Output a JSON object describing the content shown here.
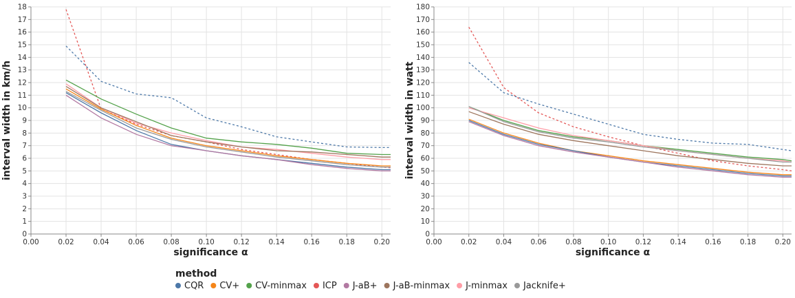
{
  "legend": {
    "title": "method",
    "entries": [
      {
        "name": "CQR",
        "color": "#4c78a8"
      },
      {
        "name": "CV+",
        "color": "#f58518"
      },
      {
        "name": "CV-minmax",
        "color": "#54a24b"
      },
      {
        "name": "ICP",
        "color": "#e45756"
      },
      {
        "name": "J-aB+",
        "color": "#b279a2"
      },
      {
        "name": "J-aB-minmax",
        "color": "#9d755d"
      },
      {
        "name": "J-minmax",
        "color": "#ff9da6"
      },
      {
        "name": "Jacknife+",
        "color": "#999999"
      }
    ]
  },
  "chart_data": [
    {
      "type": "line",
      "xlabel": "significance α",
      "ylabel": "interval width in km/h",
      "xlim": [
        0.0,
        0.205
      ],
      "ylim": [
        0,
        18
      ],
      "x_ticks": [
        "0.00",
        "0.02",
        "0.04",
        "0.06",
        "0.08",
        "0.10",
        "0.12",
        "0.14",
        "0.16",
        "0.18",
        "0.20"
      ],
      "y_ticks": [
        "0",
        "1",
        "2",
        "3",
        "4",
        "5",
        "6",
        "7",
        "8",
        "9",
        "10",
        "11",
        "12",
        "13",
        "14",
        "15",
        "16",
        "17",
        "18"
      ],
      "grid": true,
      "x": [
        0.02,
        0.04,
        0.06,
        0.08,
        0.1,
        0.12,
        0.14,
        0.16,
        0.18,
        0.2,
        0.205
      ],
      "series": [
        {
          "name": "CQR",
          "color": "#4c78a8",
          "dashed": true,
          "values": [
            14.9,
            12.1,
            11.1,
            10.8,
            9.2,
            8.5,
            7.7,
            7.3,
            6.9,
            6.85,
            6.85
          ]
        },
        {
          "name": "ICP",
          "color": "#e45756",
          "dashed": true,
          "values": [
            17.8,
            9.9,
            8.7,
            7.8,
            7.3,
            6.7,
            6.3,
            5.9,
            5.6,
            5.3,
            5.25
          ]
        },
        {
          "name": "CV-minmax",
          "color": "#54a24b",
          "dashed": false,
          "values": [
            12.2,
            10.7,
            9.5,
            8.4,
            7.6,
            7.3,
            7.1,
            6.8,
            6.4,
            6.3,
            6.3
          ]
        },
        {
          "name": "J-minmax",
          "color": "#ff9da6",
          "dashed": false,
          "values": [
            11.9,
            10.0,
            8.8,
            8.0,
            7.4,
            6.9,
            6.7,
            6.4,
            6.1,
            5.9,
            5.9
          ]
        },
        {
          "name": "J-aB-minmax",
          "color": "#9d755d",
          "dashed": false,
          "values": [
            11.7,
            10.0,
            8.9,
            7.8,
            7.3,
            6.9,
            6.6,
            6.5,
            6.3,
            6.1,
            6.1
          ]
        },
        {
          "name": "CV+",
          "color": "#f58518",
          "dashed": false,
          "values": [
            11.5,
            9.9,
            8.6,
            7.6,
            7.0,
            6.6,
            6.2,
            5.9,
            5.6,
            5.4,
            5.4
          ]
        },
        {
          "name": "Jacknife+",
          "color": "#999999",
          "dashed": false,
          "values": [
            11.3,
            9.8,
            8.4,
            7.5,
            6.9,
            6.5,
            6.1,
            5.8,
            5.5,
            5.3,
            5.3
          ]
        },
        {
          "name": "CQR",
          "color": "#4c78a8",
          "dashed": false,
          "values": [
            11.2,
            9.6,
            8.2,
            7.1,
            6.6,
            6.2,
            5.9,
            5.6,
            5.3,
            5.1,
            5.1
          ]
        },
        {
          "name": "J-aB+",
          "color": "#b279a2",
          "dashed": false,
          "values": [
            11.0,
            9.2,
            7.9,
            7.0,
            6.6,
            6.2,
            5.9,
            5.5,
            5.2,
            5.0,
            5.0
          ]
        }
      ]
    },
    {
      "type": "line",
      "xlabel": "significance α",
      "ylabel": "interval width in watt",
      "xlim": [
        0.0,
        0.205
      ],
      "ylim": [
        0,
        180
      ],
      "x_ticks": [
        "0.00",
        "0.02",
        "0.04",
        "0.06",
        "0.08",
        "0.10",
        "0.12",
        "0.14",
        "0.16",
        "0.18",
        "0.20"
      ],
      "y_ticks": [
        "0",
        "10",
        "20",
        "30",
        "40",
        "50",
        "60",
        "70",
        "80",
        "90",
        "100",
        "110",
        "120",
        "130",
        "140",
        "150",
        "160",
        "170",
        "180"
      ],
      "grid": true,
      "x": [
        0.02,
        0.04,
        0.06,
        0.08,
        0.1,
        0.12,
        0.14,
        0.16,
        0.18,
        0.2,
        0.205
      ],
      "series": [
        {
          "name": "ICP",
          "color": "#e45756",
          "dashed": true,
          "values": [
            164,
            116,
            96,
            85,
            77,
            70,
            64,
            58,
            54,
            51,
            50
          ]
        },
        {
          "name": "CQR",
          "color": "#4c78a8",
          "dashed": true,
          "values": [
            136,
            112,
            103,
            95,
            87,
            79,
            75,
            72,
            71,
            67,
            66
          ]
        },
        {
          "name": "CV-minmax",
          "color": "#54a24b",
          "dashed": false,
          "values": [
            101,
            90,
            82,
            77,
            74,
            70,
            67,
            64,
            61,
            59,
            58
          ]
        },
        {
          "name": "J-minmax",
          "color": "#ff9da6",
          "dashed": false,
          "values": [
            100,
            92,
            84,
            78,
            74,
            70,
            66,
            63,
            60,
            58,
            57
          ]
        },
        {
          "name": "Jacknife+",
          "color": "#999999",
          "dashed": false,
          "values": [
            101,
            89,
            81,
            76,
            73,
            69,
            66,
            63,
            60,
            57,
            57
          ]
        },
        {
          "name": "J-aB-minmax",
          "color": "#9d755d",
          "dashed": false,
          "values": [
            97,
            87,
            79,
            74,
            70,
            66,
            62,
            59,
            56,
            54,
            54
          ]
        },
        {
          "name": "CV+",
          "color": "#f58518",
          "dashed": false,
          "values": [
            91,
            80,
            72,
            66,
            62,
            58,
            55,
            52,
            49,
            47,
            47
          ]
        },
        {
          "name": "CQR",
          "color": "#4c78a8",
          "dashed": false,
          "values": [
            90,
            79,
            71,
            66,
            61,
            57,
            54,
            51,
            48,
            46,
            46
          ]
        },
        {
          "name": "J-aB+",
          "color": "#b279a2",
          "dashed": false,
          "values": [
            89,
            78,
            70,
            65,
            61,
            57,
            53,
            50,
            47,
            45,
            45
          ]
        }
      ]
    }
  ]
}
